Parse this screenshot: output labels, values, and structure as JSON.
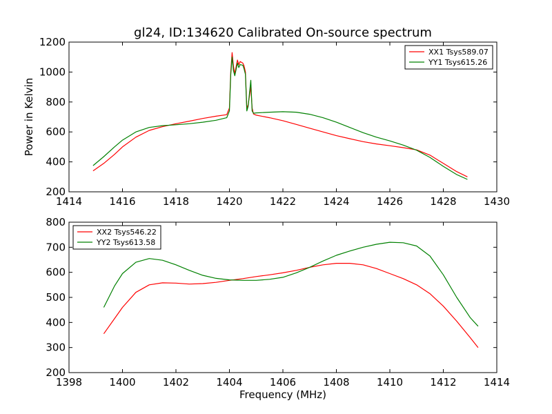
{
  "figure_title": "gl24, ID:134620 Calibrated On-source spectrum",
  "colors": {
    "red": "#ff0000",
    "green": "#008000",
    "axes": "#000000",
    "background": "#ffffff"
  },
  "chart_data": [
    {
      "type": "line",
      "title": "gl24, ID:134620 Calibrated On-source spectrum",
      "xlabel": "",
      "ylabel": "Power in Kelvin",
      "xlim": [
        1414,
        1430
      ],
      "ylim": [
        200,
        1200
      ],
      "xticks": [
        1414,
        1416,
        1418,
        1420,
        1422,
        1424,
        1426,
        1428,
        1430
      ],
      "yticks": [
        200,
        400,
        600,
        800,
        1000,
        1200
      ],
      "grid": false,
      "legend_placement": "top-right",
      "series": [
        {
          "name": "XX1 Tsys589.07",
          "color": "#ff0000",
          "x": [
            1414.9,
            1415.3,
            1415.7,
            1416.0,
            1416.5,
            1417.0,
            1417.5,
            1418.0,
            1418.5,
            1419.0,
            1419.5,
            1419.9,
            1420.0,
            1420.05,
            1420.1,
            1420.15,
            1420.2,
            1420.3,
            1420.35,
            1420.4,
            1420.5,
            1420.55,
            1420.6,
            1420.65,
            1420.7,
            1420.8,
            1420.85,
            1420.9,
            1421.0,
            1421.5,
            1422.0,
            1422.5,
            1423.0,
            1423.5,
            1424.0,
            1424.5,
            1425.0,
            1425.5,
            1426.0,
            1426.5,
            1427.0,
            1427.5,
            1428.0,
            1428.5,
            1428.9
          ],
          "y": [
            340,
            390,
            450,
            500,
            565,
            610,
            635,
            655,
            672,
            690,
            705,
            715,
            760,
            1000,
            1130,
            1040,
            990,
            1080,
            1050,
            1070,
            1060,
            1040,
            1000,
            760,
            780,
            900,
            760,
            720,
            712,
            695,
            675,
            650,
            625,
            600,
            575,
            555,
            535,
            520,
            508,
            495,
            480,
            445,
            390,
            335,
            300
          ]
        },
        {
          "name": "YY1 Tsys615.26",
          "color": "#008000",
          "x": [
            1414.9,
            1415.3,
            1415.7,
            1416.0,
            1416.5,
            1417.0,
            1417.5,
            1418.0,
            1418.5,
            1419.0,
            1419.5,
            1419.9,
            1420.0,
            1420.05,
            1420.1,
            1420.15,
            1420.2,
            1420.3,
            1420.35,
            1420.4,
            1420.5,
            1420.55,
            1420.6,
            1420.65,
            1420.7,
            1420.8,
            1420.85,
            1420.9,
            1421.0,
            1421.5,
            1422.0,
            1422.5,
            1423.0,
            1423.5,
            1424.0,
            1424.5,
            1425.0,
            1425.5,
            1426.0,
            1426.5,
            1427.0,
            1427.5,
            1428.0,
            1428.5,
            1428.9
          ],
          "y": [
            375,
            435,
            500,
            545,
            600,
            630,
            642,
            648,
            655,
            665,
            678,
            695,
            740,
            980,
            1100,
            1010,
            975,
            1060,
            1030,
            1050,
            1045,
            1020,
            985,
            740,
            770,
            945,
            740,
            725,
            727,
            732,
            735,
            732,
            718,
            695,
            665,
            630,
            595,
            565,
            540,
            512,
            478,
            430,
            370,
            315,
            283
          ]
        }
      ]
    },
    {
      "type": "line",
      "title": "",
      "xlabel": "Frequency (MHz)",
      "ylabel": "",
      "xlim": [
        1398,
        1414
      ],
      "ylim": [
        200,
        800
      ],
      "xticks": [
        1398,
        1400,
        1402,
        1404,
        1406,
        1408,
        1410,
        1412,
        1414
      ],
      "yticks": [
        200,
        300,
        400,
        500,
        600,
        700,
        800
      ],
      "grid": false,
      "legend_placement": "top-left",
      "series": [
        {
          "name": "XX2 Tsys546.22",
          "color": "#ff0000",
          "x": [
            1399.3,
            1399.7,
            1400.0,
            1400.5,
            1401.0,
            1401.5,
            1402.0,
            1402.5,
            1403.0,
            1403.5,
            1404.0,
            1404.5,
            1405.0,
            1405.5,
            1406.0,
            1406.5,
            1407.0,
            1407.5,
            1408.0,
            1408.5,
            1409.0,
            1409.5,
            1410.0,
            1410.5,
            1411.0,
            1411.5,
            1412.0,
            1412.5,
            1413.0,
            1413.3
          ],
          "y": [
            355,
            415,
            460,
            520,
            550,
            558,
            557,
            553,
            555,
            560,
            568,
            575,
            583,
            590,
            598,
            608,
            620,
            630,
            636,
            636,
            630,
            615,
            595,
            575,
            550,
            515,
            465,
            405,
            340,
            300
          ]
        },
        {
          "name": "YY2 Tsys613.58",
          "color": "#008000",
          "x": [
            1399.3,
            1399.7,
            1400.0,
            1400.5,
            1401.0,
            1401.5,
            1402.0,
            1402.5,
            1403.0,
            1403.5,
            1404.0,
            1404.5,
            1405.0,
            1405.5,
            1406.0,
            1406.5,
            1407.0,
            1407.5,
            1408.0,
            1408.5,
            1409.0,
            1409.5,
            1410.0,
            1410.5,
            1411.0,
            1411.5,
            1412.0,
            1412.5,
            1413.0,
            1413.3
          ],
          "y": [
            460,
            545,
            595,
            640,
            655,
            648,
            630,
            608,
            588,
            576,
            570,
            568,
            568,
            572,
            580,
            598,
            620,
            645,
            668,
            685,
            700,
            712,
            720,
            718,
            705,
            665,
            590,
            500,
            420,
            385
          ]
        }
      ]
    }
  ]
}
